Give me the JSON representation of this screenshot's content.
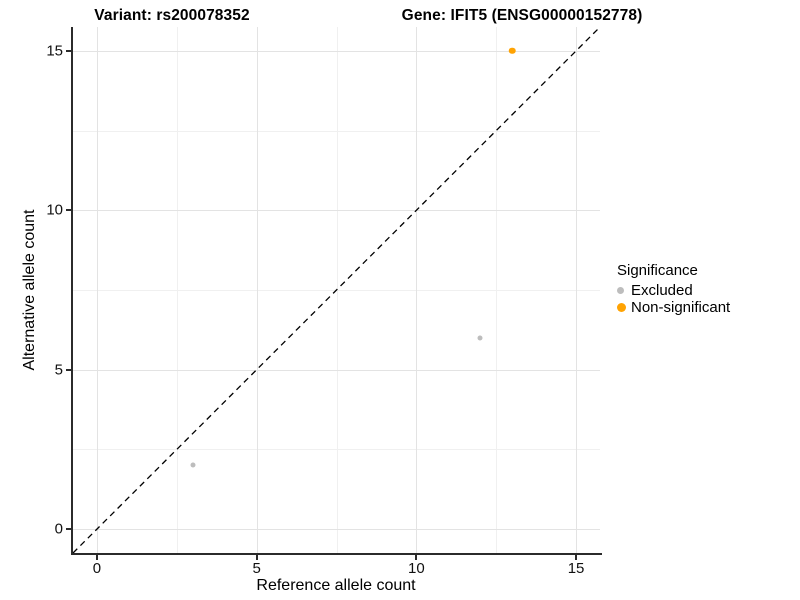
{
  "chart_data": {
    "type": "scatter",
    "title_left": "Variant: rs200078352",
    "title_right": "Gene: IFIT5 (ENSG00000152778)",
    "xlabel": "Reference allele count",
    "ylabel": "Alternative allele count",
    "xlim": [
      -0.75,
      15.75
    ],
    "ylim": [
      -0.75,
      15.75
    ],
    "x_major_ticks": [
      0,
      5,
      10,
      15
    ],
    "y_major_ticks": [
      0,
      5,
      10,
      15
    ],
    "x_minor_ticks": [
      2.5,
      7.5,
      12.5
    ],
    "y_minor_ticks": [
      2.5,
      7.5,
      12.5
    ],
    "grid": "on",
    "identity_line": {
      "type": "y=x",
      "style": "dashed",
      "color": "#000000"
    },
    "legend": {
      "title": "Significance",
      "position": "right",
      "items": [
        {
          "label": "Excluded",
          "color": "#bdbdbd",
          "dot_size": 7
        },
        {
          "label": "Non-significant",
          "color": "#ffa303",
          "dot_size": 9
        }
      ]
    },
    "series": [
      {
        "name": "Excluded",
        "color": "#bdbdbd",
        "point_size": 5,
        "points": [
          {
            "x": 3,
            "y": 2
          },
          {
            "x": 12,
            "y": 6
          }
        ]
      },
      {
        "name": "Non-significant",
        "color": "#ffa303",
        "point_size": 6.5,
        "points": [
          {
            "x": 13,
            "y": 15
          }
        ]
      }
    ]
  }
}
